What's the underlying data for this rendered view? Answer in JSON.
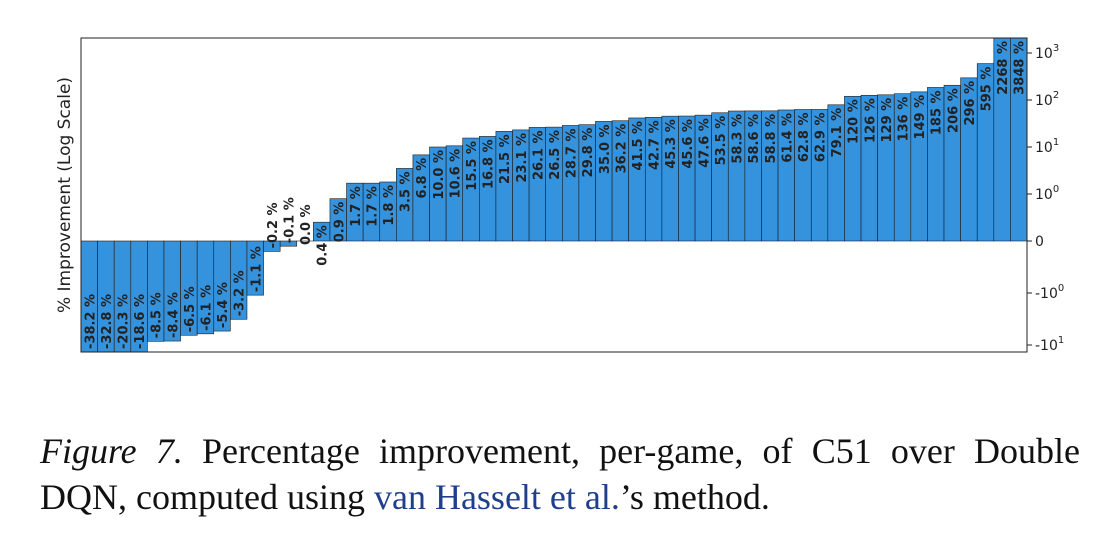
{
  "chart_data": {
    "type": "bar",
    "ylabel": "% Improvement (Log Scale)",
    "yscale": "symlog",
    "y_ticks": [
      {
        "value": -10,
        "label": "-10",
        "exp": "1"
      },
      {
        "value": -1,
        "label": "-10",
        "exp": "0"
      },
      {
        "value": 0,
        "label": "0",
        "exp": ""
      },
      {
        "value": 1,
        "label": "10",
        "exp": "0"
      },
      {
        "value": 10,
        "label": "10",
        "exp": "1"
      },
      {
        "value": 100,
        "label": "10",
        "exp": "2"
      },
      {
        "value": 1000,
        "label": "10",
        "exp": "3"
      }
    ],
    "bar_color": "#3592dd",
    "values": [
      -38.2,
      -32.8,
      -20.3,
      -18.6,
      -8.5,
      -8.4,
      -6.5,
      -6.1,
      -5.4,
      -3.2,
      -1.1,
      -0.2,
      -0.1,
      0.0,
      0.4,
      0.9,
      1.7,
      1.7,
      1.8,
      3.5,
      6.8,
      10.0,
      10.6,
      15.5,
      16.8,
      21.5,
      23.1,
      26.1,
      26.5,
      28.7,
      29.8,
      35.0,
      36.2,
      41.5,
      42.7,
      45.3,
      45.6,
      47.6,
      53.5,
      58.3,
      58.6,
      58.8,
      61.4,
      62.8,
      62.9,
      79.1,
      120,
      126,
      129,
      136,
      149,
      185,
      206,
      296,
      595,
      2268,
      3848
    ],
    "labels": [
      "-38.2 %",
      "-32.8 %",
      "-20.3 %",
      "-18.6 %",
      "-8.5 %",
      "-8.4 %",
      "-6.5 %",
      "-6.1 %",
      "-5.4 %",
      "-3.2 %",
      "-1.1 %",
      "-0.2 %",
      "-0.1 %",
      "0.0 %",
      "0.4 %",
      "0.9 %",
      "1.7 %",
      "1.7 %",
      "1.8 %",
      "3.5 %",
      "6.8 %",
      "10.0 %",
      "10.6 %",
      "15.5 %",
      "16.8 %",
      "21.5 %",
      "23.1 %",
      "26.1 %",
      "26.5 %",
      "28.7 %",
      "29.8 %",
      "35.0 %",
      "36.2 %",
      "41.5 %",
      "42.7 %",
      "45.3 %",
      "45.6 %",
      "47.6 %",
      "53.5 %",
      "58.3 %",
      "58.6 %",
      "58.8 %",
      "61.4 %",
      "62.8 %",
      "62.9 %",
      "79.1 %",
      "120 %",
      "126 %",
      "129 %",
      "136 %",
      "149 %",
      "185 %",
      "206 %",
      "296 %",
      "595 %",
      "2268 %",
      "3848 %"
    ]
  },
  "caption": {
    "figure_label": "Figure 7.",
    "text_before": " Percentage improvement, per-game, of C51 over Double DQN, computed using ",
    "reference": "van Hasselt et al.",
    "text_after": "’s method."
  }
}
